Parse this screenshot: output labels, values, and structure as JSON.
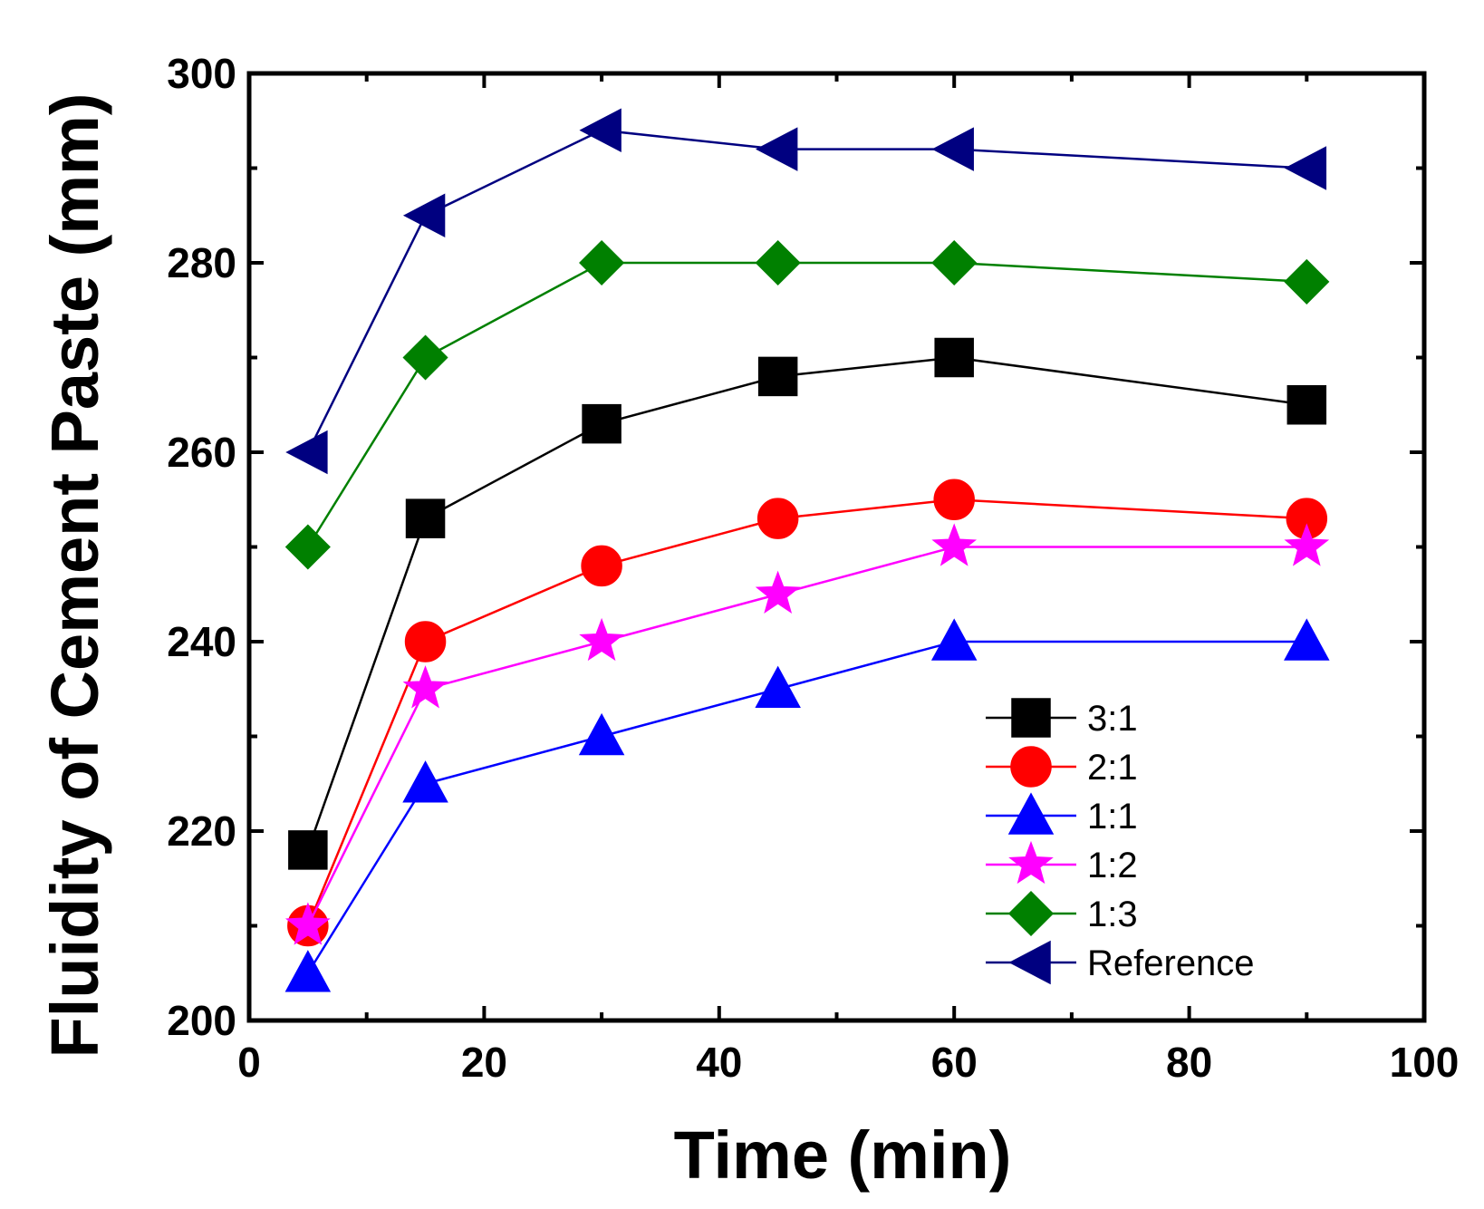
{
  "chart_data": {
    "type": "line",
    "title": "",
    "xlabel": "Time (min)",
    "ylabel": "Fluidity of Cement Paste (mm)",
    "xlim": [
      0,
      100
    ],
    "ylim": [
      200,
      300
    ],
    "xticks": [
      0,
      20,
      40,
      60,
      80,
      100
    ],
    "yticks": [
      200,
      220,
      240,
      260,
      280,
      300
    ],
    "x": [
      5,
      15,
      30,
      45,
      60,
      90
    ],
    "grid": false,
    "legend_position": "bottom-right",
    "series": [
      {
        "name": "3:1",
        "marker": "square",
        "color": "#000000",
        "values": [
          218,
          253,
          263,
          268,
          270,
          265
        ]
      },
      {
        "name": "2:1",
        "marker": "circle",
        "color": "#ff0000",
        "values": [
          210,
          240,
          248,
          253,
          255,
          253
        ]
      },
      {
        "name": "1:1",
        "marker": "triangle-up",
        "color": "#0000ff",
        "values": [
          205,
          225,
          230,
          235,
          240,
          240
        ]
      },
      {
        "name": "1:2",
        "marker": "star",
        "color": "#ff00ff",
        "values": [
          210,
          235,
          240,
          245,
          250,
          250
        ]
      },
      {
        "name": "1:3",
        "marker": "diamond",
        "color": "#008000",
        "values": [
          250,
          270,
          280,
          280,
          280,
          278
        ]
      },
      {
        "name": "Reference",
        "marker": "triangle-left",
        "color": "#000080",
        "values": [
          260,
          285,
          294,
          292,
          292,
          290
        ]
      }
    ]
  }
}
